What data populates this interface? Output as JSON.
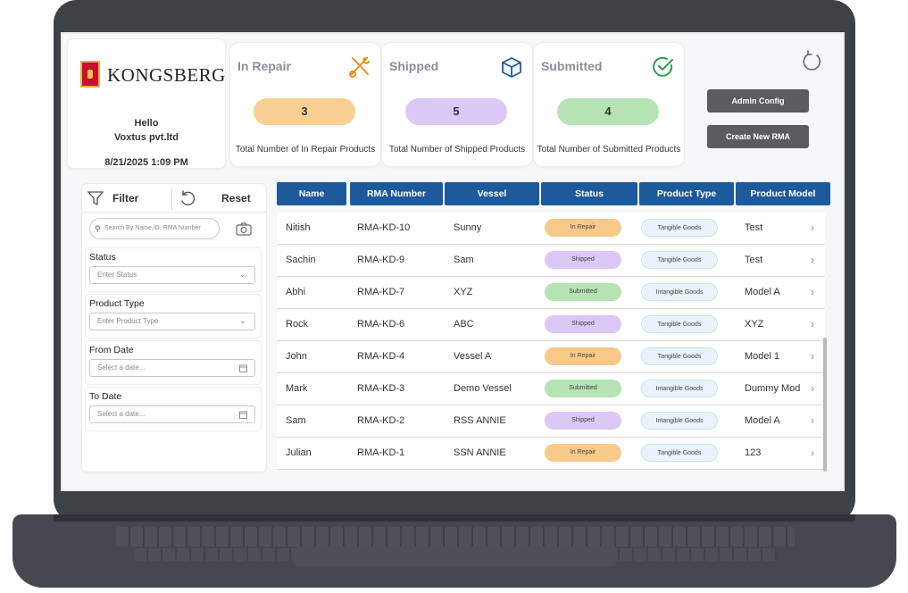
{
  "brand": {
    "name": "KONGSBERG",
    "greeting": "Hello",
    "company": "Voxtus pvt.ltd",
    "datetime": "8/21/2025 1:09 PM"
  },
  "kpis": [
    {
      "title": "In Repair",
      "value": "3",
      "caption": "Total Number of In Repair Products",
      "pill_color": "#f9cf92",
      "icon": "scissors-wrench-icon",
      "icon_color": "#f08a14"
    },
    {
      "title": "Shipped",
      "value": "5",
      "caption": "Total Number of Shipped Products",
      "pill_color": "#dcc8f7",
      "icon": "box-icon",
      "icon_color": "#1c5a9c"
    },
    {
      "title": "Submitted",
      "value": "4",
      "caption": "Total Number of Submitted Products",
      "pill_color": "#b6e3b4",
      "icon": "check-circle-icon",
      "icon_color": "#2e9e4a"
    }
  ],
  "actions": {
    "admin_label": "Admin Config",
    "create_label": "Create New RMA",
    "refresh_icon": "refresh-icon"
  },
  "filter": {
    "filter_label": "Filter",
    "reset_label": "Reset",
    "search_placeholder": "Search By Name,ID, RMA Number",
    "status_label": "Status",
    "status_placeholder": "Enter Status",
    "product_type_label": "Product Type",
    "product_type_placeholder": "Enter Product Type",
    "from_date_label": "From Date",
    "from_date_placeholder": "Select a date...",
    "to_date_label": "To Date",
    "to_date_placeholder": "Select a date..."
  },
  "table": {
    "columns": [
      "Name",
      "RMA Number",
      "Vessel",
      "Status",
      "Product Type",
      "Product Model"
    ],
    "rows": [
      {
        "name": "Nitish",
        "rma": "RMA-KD-10",
        "vessel": "Sunny",
        "status": "In Repair",
        "type": "Tangible Goods",
        "model": "Test"
      },
      {
        "name": "Sachin",
        "rma": "RMA-KD-9",
        "vessel": "Sam",
        "status": "Shipped",
        "type": "Tangible Goods",
        "model": "Test"
      },
      {
        "name": "Abhi",
        "rma": "RMA-KD-7",
        "vessel": "XYZ",
        "status": "Submitted",
        "type": "Intangible Goods",
        "model": "Model A"
      },
      {
        "name": "Rock",
        "rma": "RMA-KD-6",
        "vessel": "ABC",
        "status": "Shipped",
        "type": "Tangible Goods",
        "model": "XYZ"
      },
      {
        "name": "John",
        "rma": "RMA-KD-4",
        "vessel": "Vessel A",
        "status": "In Repair",
        "type": "Tangible Goods",
        "model": "Model 1"
      },
      {
        "name": "Mark",
        "rma": "RMA-KD-3",
        "vessel": "Demo Vessel",
        "status": "Submitted",
        "type": "Intangible Goods",
        "model": "Dummy Mod"
      },
      {
        "name": "Sam",
        "rma": "RMA-KD-2",
        "vessel": "RSS ANNIE",
        "status": "Shipped",
        "type": "Intangible Goods",
        "model": "Model A"
      },
      {
        "name": "Julian",
        "rma": "RMA-KD-1",
        "vessel": "SSN ANNIE",
        "status": "In Repair",
        "type": "Tangible Goods",
        "model": "123"
      }
    ],
    "status_colors": {
      "In Repair": "#f9c98a",
      "Shipped": "#dcc8f7",
      "Submitted": "#b6e3b4"
    }
  }
}
